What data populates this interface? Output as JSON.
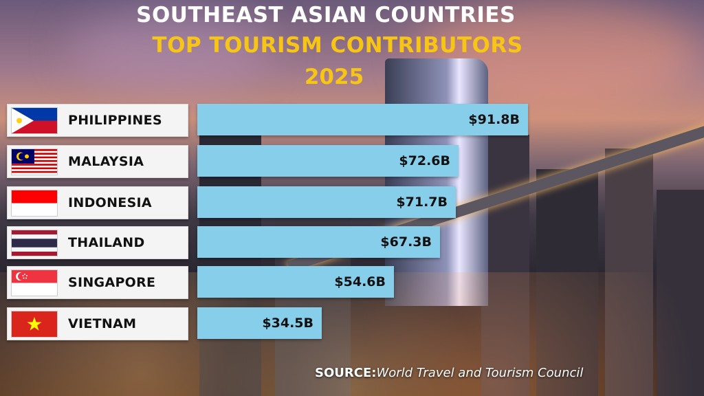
{
  "header": {
    "line1": "SOUTHEAST ASIAN COUNTRIES",
    "line2": "TOP TOURISM CONTRIBUTORS",
    "line3": "2025"
  },
  "source": {
    "prefix": "SOURCE:",
    "text": "World Travel and Tourism Council"
  },
  "colors": {
    "bar": "#87ceeb",
    "title_white": "#ffffff",
    "title_yellow": "#f6c516",
    "label_box": "#f4f4f4"
  },
  "chart_data": {
    "type": "bar",
    "orientation": "horizontal",
    "title": "SOUTHEAST ASIAN COUNTRIES TOP TOURISM CONTRIBUTORS 2025",
    "categories": [
      "PHILIPPINES",
      "MALAYSIA",
      "INDONESIA",
      "THAILAND",
      "SINGAPORE",
      "VIETNAM"
    ],
    "values": [
      91.8,
      72.6,
      71.7,
      67.3,
      54.6,
      34.5
    ],
    "value_labels": [
      "$91.8B",
      "$72.6B",
      "$71.7B",
      "$67.3B",
      "$54.6B",
      "$34.5B"
    ],
    "flags": [
      "philippines-flag-icon",
      "malaysia-flag-icon",
      "indonesia-flag-icon",
      "thailand-flag-icon",
      "singapore-flag-icon",
      "vietnam-flag-icon"
    ],
    "xlabel": "",
    "ylabel": "",
    "grid": false,
    "legend": "none"
  }
}
